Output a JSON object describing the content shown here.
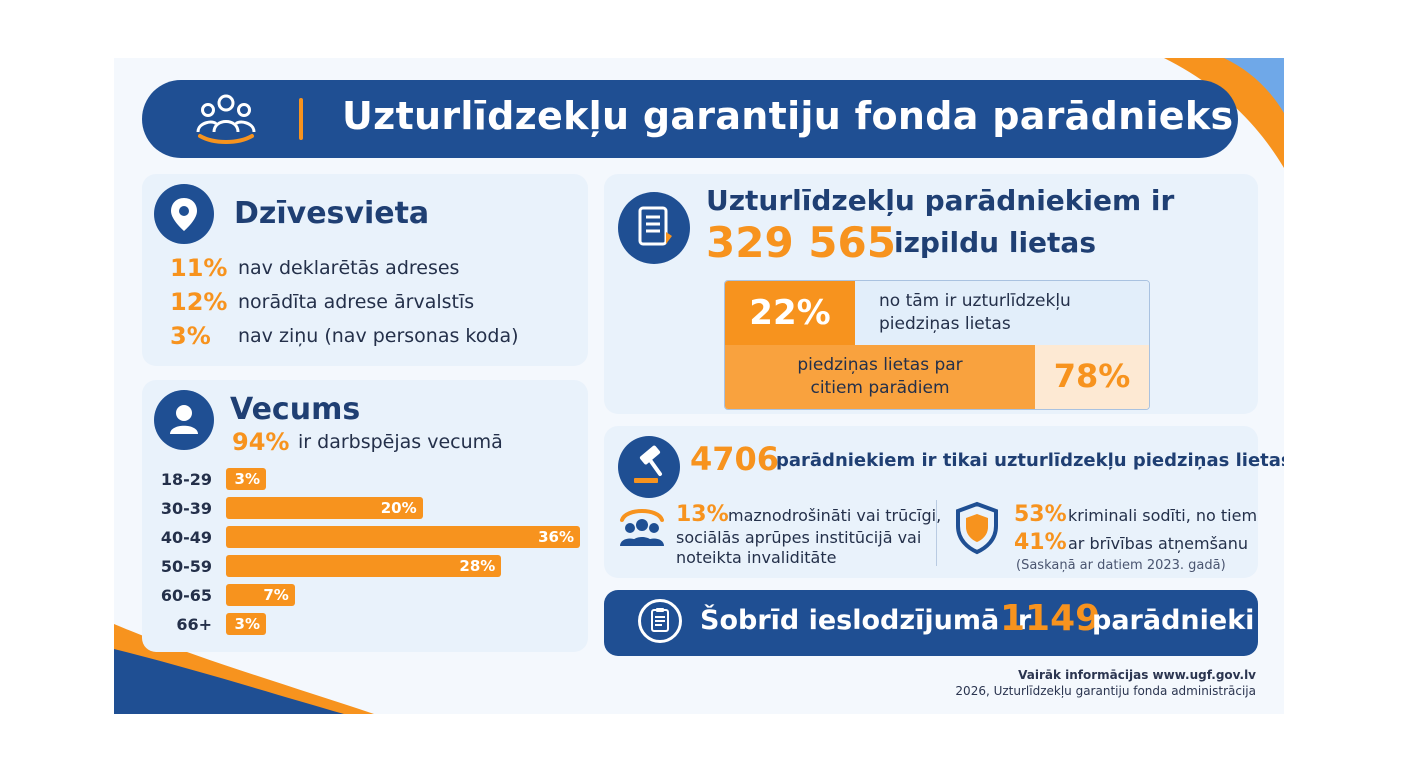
{
  "header": {
    "title": "Uzturlīdzekļu garantiju fonda parādnieks"
  },
  "residence": {
    "title": "Dzīvesvieta",
    "items": [
      {
        "pct": "11%",
        "text": "nav deklarētās adreses"
      },
      {
        "pct": "12%",
        "text": "norādīta adrese ārvalstīs"
      },
      {
        "pct": "3%",
        "text": "nav ziņu (nav personas koda)"
      }
    ]
  },
  "age": {
    "title": "Vecums",
    "working_pct": "94%",
    "working_text": "ir darbspējas vecumā"
  },
  "chart_data": {
    "type": "bar",
    "orientation": "horizontal",
    "categories": [
      "18-29",
      "30-39",
      "40-49",
      "50-59",
      "60-65",
      "66+"
    ],
    "values": [
      3,
      20,
      36,
      28,
      7,
      3
    ],
    "value_labels": [
      "3%",
      "20%",
      "36%",
      "28%",
      "7%",
      "3%"
    ],
    "xlim": [
      0,
      36
    ],
    "grid": false
  },
  "cases": {
    "line1": "Uzturlīdzekļu parādniekiem ir",
    "number": "329 565",
    "line2_suffix": "izpildu lietas",
    "share_pct": "22%",
    "share_text_1": "no tām ir uzturlīdzekļu",
    "share_text_2": "piedziņas lietas",
    "other_text_1": "piedziņas lietas par",
    "other_text_2": "citiem parādiem",
    "other_pct": "78%"
  },
  "only_maintenance": {
    "number": "4706",
    "text": "parādniekiem ir tikai uzturlīdzekļu piedziņas lietas",
    "social_pct": "13%",
    "social_text_1": "maznodrošināti vai trūcīgi,",
    "social_text_2": "sociālās aprūpes institūcijā vai",
    "social_text_3": "noteikta invaliditāte",
    "crim_pct": "53%",
    "crim_text": "kriminali sodīti, no tiem",
    "prison_pct": "41%",
    "prison_text": "ar brīvības atņemšanu",
    "note": "(Saskaņā ar datiem 2023. gadā)"
  },
  "prison": {
    "text_before": "Šobrīd ieslodzījumā ir",
    "number": "1149",
    "text_after": "parādnieki"
  },
  "footer": {
    "more_info": "Vairāk informācijas www.ugf.gov.lv",
    "credit": "2026, Uzturlīdzekļu garantiju fonda administrācija"
  },
  "colors": {
    "navy": "#1f4f93",
    "orange": "#f7931e",
    "light": "#e9f2fb"
  },
  "icons": [
    "people-icon",
    "location-pin-icon",
    "person-icon",
    "document-icon",
    "gavel-icon",
    "group-icon",
    "shield-icon",
    "clipboard-icon"
  ]
}
